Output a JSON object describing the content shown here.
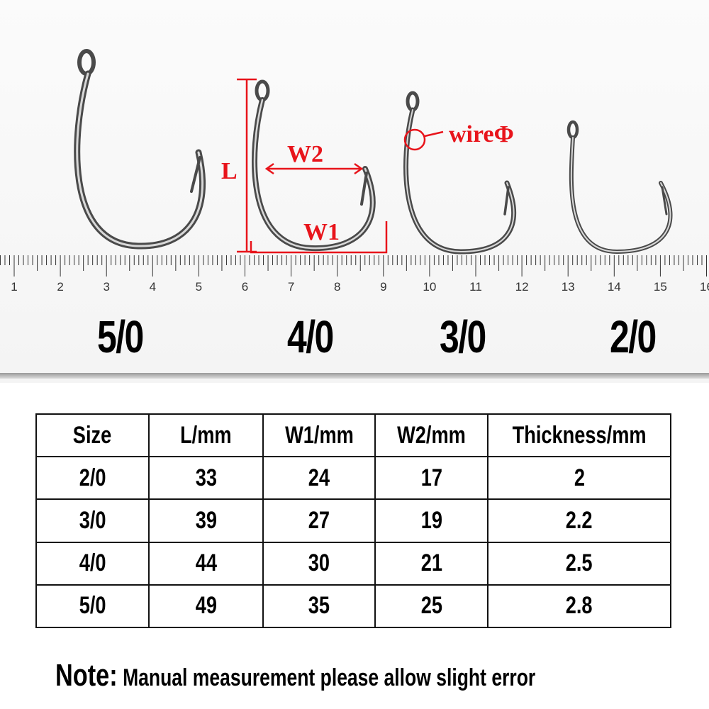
{
  "ruler": {
    "numbers": [
      "1",
      "2",
      "3",
      "4",
      "5",
      "6",
      "7",
      "8",
      "9",
      "10",
      "11",
      "12",
      "13",
      "14",
      "15",
      "16"
    ]
  },
  "hook_sizes": [
    "5/0",
    "4/0",
    "3/0",
    "2/0"
  ],
  "annotations": {
    "length": "L",
    "width1": "W1",
    "width2": "W2",
    "wire": "wireΦ",
    "color": "#e8141b"
  },
  "table": {
    "headers": [
      "Size",
      "L/mm",
      "W1/mm",
      "W2/mm",
      "Thickness/mm"
    ],
    "rows": [
      [
        "2/0",
        "33",
        "24",
        "17",
        "2"
      ],
      [
        "3/0",
        "39",
        "27",
        "19",
        "2.2"
      ],
      [
        "4/0",
        "44",
        "30",
        "21",
        "2.5"
      ],
      [
        "5/0",
        "49",
        "35",
        "25",
        "2.8"
      ]
    ]
  },
  "note": {
    "heading": "Note:",
    "text": " Manual measurement please allow slight error"
  }
}
